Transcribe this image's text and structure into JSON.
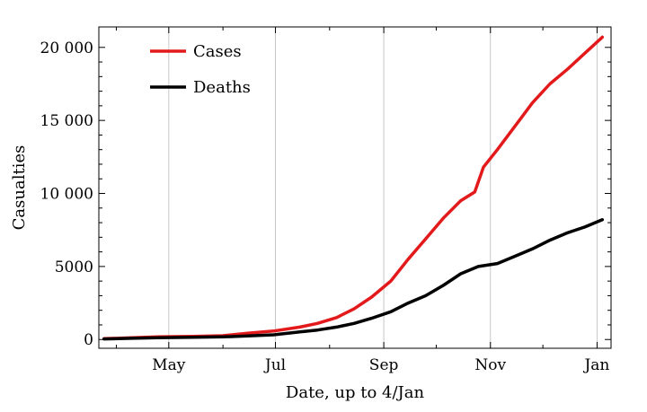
{
  "chart_data": {
    "type": "line",
    "xlabel": "Date, up to 4/Jan",
    "ylabel": "Casualties",
    "x_axis": {
      "range": [
        "2014-03-22",
        "2015-01-09"
      ],
      "ticks": [
        {
          "date": "2014-05-01",
          "label": "May"
        },
        {
          "date": "2014-07-01",
          "label": "Jul"
        },
        {
          "date": "2014-09-01",
          "label": "Sep"
        },
        {
          "date": "2014-11-01",
          "label": "Nov"
        },
        {
          "date": "2015-01-01",
          "label": "Jan"
        }
      ]
    },
    "y_axis": {
      "range": [
        -600,
        21400
      ],
      "ticks": [
        {
          "value": 0,
          "label": "0"
        },
        {
          "value": 5000,
          "label": "5000"
        },
        {
          "value": 10000,
          "label": "10 000"
        },
        {
          "value": 15000,
          "label": "15 000"
        },
        {
          "value": 20000,
          "label": "20 000"
        }
      ]
    },
    "grid": "vertical at x ticks",
    "legend": {
      "placement": "top-left"
    },
    "series": [
      {
        "name": "Cases",
        "color": "#e31a1c",
        "points": [
          [
            "2014-03-25",
            60
          ],
          [
            "2014-04-10",
            120
          ],
          [
            "2014-04-25",
            180
          ],
          [
            "2014-05-15",
            210
          ],
          [
            "2014-06-01",
            260
          ],
          [
            "2014-06-15",
            430
          ],
          [
            "2014-06-30",
            580
          ],
          [
            "2014-07-15",
            850
          ],
          [
            "2014-07-25",
            1100
          ],
          [
            "2014-08-05",
            1500
          ],
          [
            "2014-08-15",
            2100
          ],
          [
            "2014-08-25",
            2900
          ],
          [
            "2014-09-05",
            4000
          ],
          [
            "2014-09-15",
            5500
          ],
          [
            "2014-09-25",
            6900
          ],
          [
            "2014-10-05",
            8300
          ],
          [
            "2014-10-15",
            9500
          ],
          [
            "2014-10-23",
            10100
          ],
          [
            "2014-10-28",
            11800
          ],
          [
            "2014-11-05",
            13000
          ],
          [
            "2014-11-15",
            14600
          ],
          [
            "2014-11-25",
            16200
          ],
          [
            "2014-12-05",
            17500
          ],
          [
            "2014-12-15",
            18500
          ],
          [
            "2014-12-25",
            19600
          ],
          [
            "2015-01-04",
            20700
          ]
        ]
      },
      {
        "name": "Deaths",
        "color": "#000000",
        "points": [
          [
            "2014-03-25",
            40
          ],
          [
            "2014-04-10",
            80
          ],
          [
            "2014-04-25",
            120
          ],
          [
            "2014-05-15",
            150
          ],
          [
            "2014-06-01",
            180
          ],
          [
            "2014-06-15",
            240
          ],
          [
            "2014-06-30",
            320
          ],
          [
            "2014-07-15",
            520
          ],
          [
            "2014-07-25",
            650
          ],
          [
            "2014-08-05",
            850
          ],
          [
            "2014-08-15",
            1100
          ],
          [
            "2014-08-25",
            1450
          ],
          [
            "2014-09-05",
            1900
          ],
          [
            "2014-09-15",
            2500
          ],
          [
            "2014-09-25",
            3000
          ],
          [
            "2014-10-05",
            3700
          ],
          [
            "2014-10-15",
            4500
          ],
          [
            "2014-10-25",
            5000
          ],
          [
            "2014-11-05",
            5200
          ],
          [
            "2014-11-15",
            5700
          ],
          [
            "2014-11-25",
            6200
          ],
          [
            "2014-12-05",
            6800
          ],
          [
            "2014-12-15",
            7300
          ],
          [
            "2014-12-25",
            7700
          ],
          [
            "2015-01-04",
            8200
          ]
        ]
      }
    ]
  }
}
